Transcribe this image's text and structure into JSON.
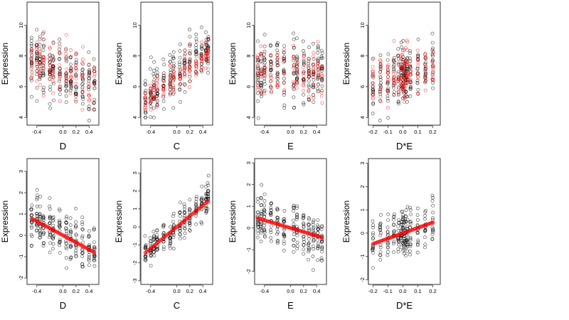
{
  "figure": {
    "background": "#ffffff",
    "open_point_color": "#000000",
    "highlight_point_color": "#ff0000"
  },
  "chart_data": [
    {
      "type": "scatter",
      "xlabel": "D",
      "ylabel": "Expression",
      "xlim": [
        -0.55,
        0.55
      ],
      "ylim": [
        3.5,
        11.5
      ],
      "xticks": [
        -0.4,
        0.0,
        0.2,
        0.4
      ],
      "xtick_labels": [
        "-0.4",
        "0.0",
        "0.2",
        "0.4"
      ],
      "yticks": [
        4,
        6,
        8,
        10
      ],
      "ytick_labels": [
        "4",
        "6",
        "8",
        "10"
      ],
      "grid": false,
      "red_style": "open",
      "x_levels": [
        -0.48,
        -0.4,
        -0.35,
        -0.3,
        -0.2,
        -0.15,
        -0.05,
        0.05,
        0.12,
        0.2,
        0.3,
        0.4,
        0.48
      ],
      "black_series": {
        "n_per_level": 18,
        "center": 6.8,
        "slope": -2.2,
        "spread": 1.6,
        "lo": 3.8,
        "hi": 11.2
      },
      "red_series": {
        "n_per_level": 10,
        "center": 7.0,
        "slope": -2.0,
        "spread": 1.4,
        "lo": 4.5,
        "hi": 10.5
      }
    },
    {
      "type": "scatter",
      "xlabel": "C",
      "ylabel": "Expression",
      "xlim": [
        -0.55,
        0.55
      ],
      "ylim": [
        3.5,
        11.5
      ],
      "xticks": [
        -0.4,
        0.0,
        0.2,
        0.4
      ],
      "xtick_labels": [
        "-0.4",
        "0.0",
        "0.2",
        "0.4"
      ],
      "yticks": [
        4,
        6,
        8,
        10
      ],
      "ytick_labels": [
        "4",
        "6",
        "8",
        "10"
      ],
      "grid": false,
      "red_style": "open",
      "x_levels": [
        -0.48,
        -0.4,
        -0.35,
        -0.3,
        -0.2,
        -0.1,
        -0.05,
        0.05,
        0.12,
        0.2,
        0.3,
        0.38,
        0.45,
        0.48
      ],
      "black_series": {
        "n_per_level": 16,
        "center": 6.8,
        "slope": 3.6,
        "spread": 1.3,
        "lo": 4.0,
        "hi": 11.2
      },
      "red_series": {
        "n_per_level": 10,
        "center": 6.6,
        "slope": 3.2,
        "spread": 0.9,
        "lo": 4.5,
        "hi": 10.0
      }
    },
    {
      "type": "scatter",
      "xlabel": "E",
      "ylabel": "Expression",
      "xlim": [
        -0.55,
        0.55
      ],
      "ylim": [
        3.5,
        11.5
      ],
      "xticks": [
        -0.4,
        0.0,
        0.2,
        0.4
      ],
      "xtick_labels": [
        "-0.4",
        "0.0",
        "0.2",
        "0.4"
      ],
      "yticks": [
        4,
        6,
        8,
        10
      ],
      "ytick_labels": [
        "4",
        "6",
        "8",
        "10"
      ],
      "grid": false,
      "red_style": "open",
      "x_levels": [
        -0.5,
        -0.45,
        -0.4,
        -0.3,
        -0.2,
        -0.1,
        0.05,
        0.1,
        0.2,
        0.28,
        0.35,
        0.42,
        0.48
      ],
      "black_series": {
        "n_per_level": 18,
        "center": 7.0,
        "slope": -0.6,
        "spread": 1.6,
        "lo": 3.8,
        "hi": 11.2
      },
      "red_series": {
        "n_per_level": 10,
        "center": 7.0,
        "slope": -0.4,
        "spread": 1.4,
        "lo": 4.5,
        "hi": 10.5
      }
    },
    {
      "type": "scatter",
      "xlabel": "D*E",
      "ylabel": "Expression",
      "xlim": [
        -0.23,
        0.25
      ],
      "ylim": [
        3.5,
        11.5
      ],
      "xticks": [
        -0.2,
        -0.1,
        0.0,
        0.1,
        0.2
      ],
      "xtick_labels": [
        "-0.2",
        "-0.1",
        "0.0",
        "0.1",
        "0.2"
      ],
      "yticks": [
        4,
        6,
        8,
        10
      ],
      "ytick_labels": [
        "4",
        "6",
        "8",
        "10"
      ],
      "grid": false,
      "red_style": "open",
      "x_levels": [
        -0.2,
        -0.15,
        -0.1,
        -0.06,
        -0.03,
        -0.01,
        0.0,
        0.01,
        0.02,
        0.03,
        0.05,
        0.1,
        0.15,
        0.2
      ],
      "black_series": {
        "n_per_level": 16,
        "center": 6.8,
        "slope": 2.5,
        "spread": 1.5,
        "lo": 3.8,
        "hi": 11.2
      },
      "red_series": {
        "n_per_level": 12,
        "center": 6.8,
        "slope": 2.5,
        "spread": 1.3,
        "lo": 4.3,
        "hi": 10.5
      }
    },
    {
      "type": "scatter",
      "xlabel": "D",
      "ylabel": "Expression",
      "xlim": [
        -0.55,
        0.55
      ],
      "ylim": [
        -2.3,
        3.6
      ],
      "xticks": [
        -0.4,
        0.0,
        0.2,
        0.4
      ],
      "xtick_labels": [
        "-0.4",
        "0.0",
        "0.2",
        "0.4"
      ],
      "yticks": [
        -2,
        -1,
        0,
        1,
        2,
        3
      ],
      "ytick_labels": [
        "-2",
        "-1",
        "0",
        "1",
        "2",
        "3"
      ],
      "grid": false,
      "red_style": "fit",
      "x_levels": [
        -0.48,
        -0.4,
        -0.35,
        -0.3,
        -0.2,
        -0.15,
        -0.05,
        0.05,
        0.12,
        0.2,
        0.3,
        0.4,
        0.48
      ],
      "black_series": {
        "n_per_level": 18,
        "center": 0.0,
        "slope": -1.6,
        "spread": 0.9,
        "lo": -2.1,
        "hi": 3.2
      },
      "fit_line": {
        "intercept": 0.0,
        "slope": -1.65
      }
    },
    {
      "type": "scatter",
      "xlabel": "C",
      "ylabel": "Expression",
      "xlim": [
        -0.55,
        0.55
      ],
      "ylim": [
        -3.2,
        3.8
      ],
      "xticks": [
        -0.4,
        0.0,
        0.2,
        0.4
      ],
      "xtick_labels": [
        "-0.4",
        "0.0",
        "0.2",
        "0.4"
      ],
      "yticks": [
        -3,
        -2,
        -1,
        0,
        1,
        2,
        3
      ],
      "ytick_labels": [
        "-3",
        "-2",
        "-1",
        "0",
        "1",
        "2",
        "3"
      ],
      "grid": false,
      "red_style": "fit",
      "x_levels": [
        -0.48,
        -0.4,
        -0.35,
        -0.3,
        -0.2,
        -0.1,
        -0.05,
        0.05,
        0.12,
        0.2,
        0.3,
        0.38,
        0.45,
        0.48
      ],
      "black_series": {
        "n_per_level": 16,
        "center": 0.0,
        "slope": 3.0,
        "spread": 0.8,
        "lo": -3.0,
        "hi": 3.6
      },
      "fit_line": {
        "intercept": 0.0,
        "slope": 3.0
      }
    },
    {
      "type": "scatter",
      "xlabel": "E",
      "ylabel": "Expression",
      "xlim": [
        -0.55,
        0.55
      ],
      "ylim": [
        -2.6,
        3.2
      ],
      "xticks": [
        -0.4,
        0.0,
        0.2,
        0.4
      ],
      "xtick_labels": [
        "-0.4",
        "0.0",
        "0.2",
        "0.4"
      ],
      "yticks": [
        -2,
        -1,
        0,
        1,
        2,
        3
      ],
      "ytick_labels": [
        "-2",
        "-1",
        "0",
        "1",
        "2",
        "3"
      ],
      "grid": false,
      "red_style": "fit",
      "x_levels": [
        -0.5,
        -0.45,
        -0.4,
        -0.3,
        -0.2,
        -0.1,
        0.05,
        0.1,
        0.2,
        0.28,
        0.35,
        0.42,
        0.48
      ],
      "black_series": {
        "n_per_level": 18,
        "center": 0.0,
        "slope": -0.9,
        "spread": 0.9,
        "lo": -2.4,
        "hi": 3.0
      },
      "fit_line": {
        "intercept": 0.0,
        "slope": -0.9
      }
    },
    {
      "type": "scatter",
      "xlabel": "D*E",
      "ylabel": "Expression",
      "xlim": [
        -0.23,
        0.25
      ],
      "ylim": [
        -2.2,
        3.2
      ],
      "xticks": [
        -0.2,
        -0.1,
        0.0,
        0.1,
        0.2
      ],
      "xtick_labels": [
        "-0.2",
        "-0.1",
        "0.0",
        "0.1",
        "0.2"
      ],
      "yticks": [
        -2,
        -1,
        0,
        1,
        2,
        3
      ],
      "ytick_labels": [
        "-2",
        "-1",
        "0",
        "1",
        "2",
        "3"
      ],
      "grid": false,
      "red_style": "fit",
      "x_levels": [
        -0.2,
        -0.15,
        -0.1,
        -0.06,
        -0.03,
        -0.01,
        0.0,
        0.01,
        0.02,
        0.03,
        0.05,
        0.1,
        0.15,
        0.2
      ],
      "black_series": {
        "n_per_level": 16,
        "center": 0.0,
        "slope": 2.2,
        "spread": 0.85,
        "lo": -2.1,
        "hi": 3.0
      },
      "fit_line": {
        "intercept": 0.0,
        "slope": 2.3
      }
    }
  ]
}
